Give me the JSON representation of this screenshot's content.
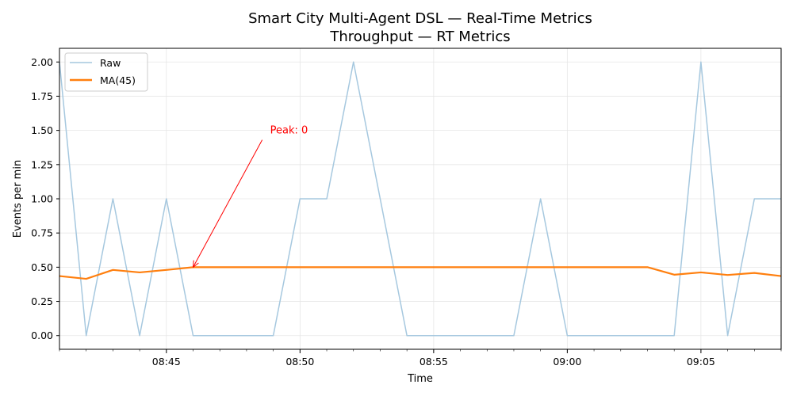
{
  "chart_data": {
    "type": "line",
    "title": "Smart City Multi-Agent DSL — Real-Time Metrics",
    "subtitle": "Throughput — RT Metrics",
    "xlabel": "Time",
    "ylabel": "Events per min",
    "x": [
      "08:41",
      "08:42",
      "08:43",
      "08:44",
      "08:45",
      "08:46",
      "08:47",
      "08:48",
      "08:49",
      "08:50",
      "08:51",
      "08:52",
      "08:53",
      "08:54",
      "08:55",
      "08:56",
      "08:57",
      "08:58",
      "08:59",
      "09:00",
      "09:01",
      "09:02",
      "09:03",
      "09:04",
      "09:05",
      "09:06",
      "09:07",
      "09:08"
    ],
    "xlim": [
      "08:41",
      "09:08"
    ],
    "ylim": [
      -0.1,
      2.1
    ],
    "x_ticks": [
      "08:45",
      "08:50",
      "08:55",
      "09:00",
      "09:05"
    ],
    "y_ticks": [
      0.0,
      0.25,
      0.5,
      0.75,
      1.0,
      1.25,
      1.5,
      1.75,
      2.0
    ],
    "y_tick_labels": [
      "0.00",
      "0.25",
      "0.50",
      "0.75",
      "1.00",
      "1.25",
      "1.50",
      "1.75",
      "2.00"
    ],
    "grid": true,
    "legend_position": "upper-left",
    "series": [
      {
        "name": "Raw",
        "color": "#a6c8df",
        "values": [
          2,
          0,
          1,
          0,
          1,
          0,
          0,
          0,
          0,
          1,
          1,
          2,
          1,
          0,
          0,
          0,
          0,
          0,
          1,
          0,
          0,
          0,
          0,
          0,
          2,
          0,
          1,
          1
        ]
      },
      {
        "name": "MA(45)",
        "color": "#ff7f0e",
        "values": [
          0.435,
          0.415,
          0.48,
          0.462,
          0.48,
          0.5,
          0.5,
          0.5,
          0.5,
          0.5,
          0.5,
          0.5,
          0.5,
          0.5,
          0.5,
          0.5,
          0.5,
          0.5,
          0.5,
          0.5,
          0.5,
          0.5,
          0.5,
          0.445,
          0.462,
          0.443,
          0.458,
          0.435
        ]
      }
    ],
    "annotations": [
      {
        "text": "Peak: 0",
        "color": "#ff0000",
        "point_x": "08:46",
        "point_y": 0.5,
        "text_x": "08:49",
        "text_y": 1.5
      }
    ]
  }
}
